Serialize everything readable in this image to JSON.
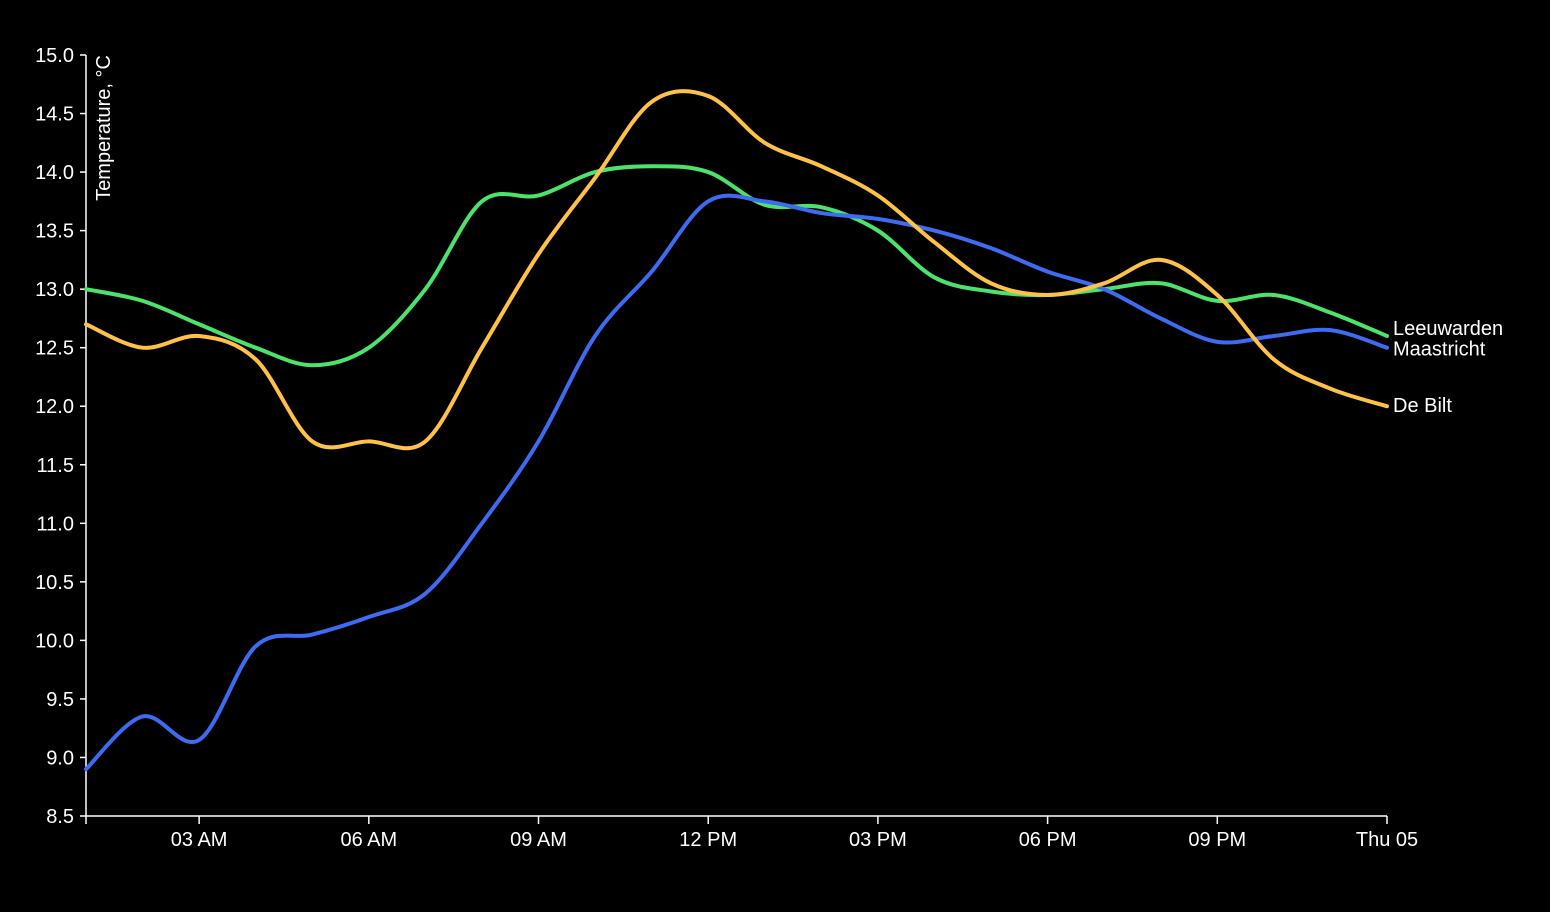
{
  "chart_data": {
    "type": "line",
    "ylabel": "Temperature, °C",
    "ylim": [
      8.5,
      15.0
    ],
    "yticks": [
      "8.5",
      "9.0",
      "9.5",
      "10.0",
      "10.5",
      "11.0",
      "11.5",
      "12.0",
      "12.5",
      "13.0",
      "13.5",
      "14.0",
      "14.5",
      "15.0"
    ],
    "xlim": [
      "2019-12-04T01:00",
      "2019-12-05T00:00"
    ],
    "xticks": [
      {
        "label": "03 AM",
        "x": "2019-12-04T03:00"
      },
      {
        "label": "06 AM",
        "x": "2019-12-04T06:00"
      },
      {
        "label": "09 AM",
        "x": "2019-12-04T09:00"
      },
      {
        "label": "12 PM",
        "x": "2019-12-04T12:00"
      },
      {
        "label": "03 PM",
        "x": "2019-12-04T15:00"
      },
      {
        "label": "06 PM",
        "x": "2019-12-04T18:00"
      },
      {
        "label": "09 PM",
        "x": "2019-12-04T21:00"
      },
      {
        "label": "Thu 05",
        "x": "2019-12-05T00:00"
      }
    ],
    "x": [
      "2019-12-04T01:00",
      "2019-12-04T02:00",
      "2019-12-04T03:00",
      "2019-12-04T04:00",
      "2019-12-04T05:00",
      "2019-12-04T06:00",
      "2019-12-04T07:00",
      "2019-12-04T08:00",
      "2019-12-04T09:00",
      "2019-12-04T10:00",
      "2019-12-04T11:00",
      "2019-12-04T12:00",
      "2019-12-04T13:00",
      "2019-12-04T14:00",
      "2019-12-04T15:00",
      "2019-12-04T16:00",
      "2019-12-04T17:00",
      "2019-12-04T18:00",
      "2019-12-04T19:00",
      "2019-12-04T20:00",
      "2019-12-04T21:00",
      "2019-12-04T22:00",
      "2019-12-04T23:00",
      "2019-12-05T00:00"
    ],
    "series": [
      {
        "name": "Leeuwarden",
        "color": "#4be36b",
        "values": [
          13.0,
          12.9,
          12.7,
          12.5,
          12.35,
          12.5,
          13.0,
          13.75,
          13.8,
          14.0,
          14.05,
          14.0,
          13.72,
          13.7,
          13.5,
          13.1,
          12.98,
          12.95,
          13.0,
          13.05,
          12.9,
          12.95,
          12.8,
          12.6
        ]
      },
      {
        "name": "Maastricht",
        "color": "#3d6bf2",
        "values": [
          8.9,
          9.35,
          9.15,
          9.95,
          10.05,
          10.2,
          10.4,
          11.0,
          11.7,
          12.6,
          13.15,
          13.75,
          13.75,
          13.65,
          13.6,
          13.5,
          13.35,
          13.15,
          13.0,
          12.75,
          12.55,
          12.6,
          12.65,
          12.5
        ]
      },
      {
        "name": "De Bilt",
        "color": "#ffc247",
        "values": [
          12.7,
          12.5,
          12.6,
          12.4,
          11.7,
          11.7,
          11.7,
          12.5,
          13.3,
          13.95,
          14.6,
          14.65,
          14.25,
          14.05,
          13.8,
          13.4,
          13.05,
          12.95,
          13.05,
          13.25,
          12.95,
          12.4,
          12.15,
          12.0
        ]
      }
    ]
  }
}
